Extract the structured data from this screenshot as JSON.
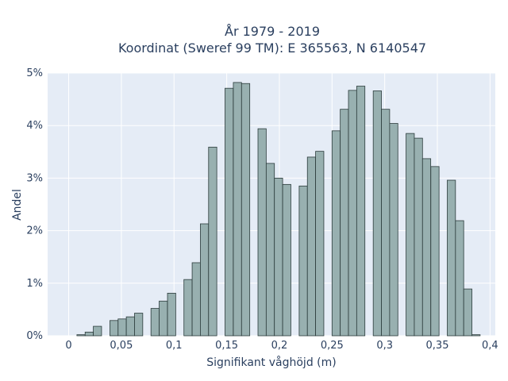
{
  "chart_data": {
    "type": "bar",
    "title_line1": "År 1979 - 2019",
    "title_line2": "Koordinat (Sweref 99 TM): E 365563, N 6140547",
    "xlabel": "Signifikant våghöjd (m)",
    "ylabel": "Andel",
    "xlim": [
      -0.02,
      0.405
    ],
    "ylim": [
      0,
      0.05
    ],
    "grid": true,
    "x_ticks": [
      {
        "v": 0,
        "label": "0"
      },
      {
        "v": 0.05,
        "label": "0,05"
      },
      {
        "v": 0.1,
        "label": "0,1"
      },
      {
        "v": 0.15,
        "label": "0,15"
      },
      {
        "v": 0.2,
        "label": "0,2"
      },
      {
        "v": 0.25,
        "label": "0,25"
      },
      {
        "v": 0.3,
        "label": "0,3"
      },
      {
        "v": 0.35,
        "label": "0,35"
      },
      {
        "v": 0.4,
        "label": "0,4"
      }
    ],
    "y_ticks": [
      {
        "v": 0,
        "label": "0%"
      },
      {
        "v": 0.01,
        "label": "1%"
      },
      {
        "v": 0.02,
        "label": "2%"
      },
      {
        "v": 0.03,
        "label": "3%"
      },
      {
        "v": 0.04,
        "label": "4%"
      },
      {
        "v": 0.05,
        "label": "5%"
      }
    ],
    "bin_width": 0.0078,
    "bar_color": "#98b0b0",
    "bar_edge_color": "#2b3b3b",
    "x": [
      0.0117,
      0.0195,
      0.0273,
      0.043,
      0.0508,
      0.0586,
      0.0664,
      0.082,
      0.0898,
      0.0977,
      0.1133,
      0.1211,
      0.1289,
      0.1367,
      0.1523,
      0.1602,
      0.168,
      0.1836,
      0.1914,
      0.1992,
      0.207,
      0.2227,
      0.2305,
      0.2383,
      0.2539,
      0.2617,
      0.2695,
      0.2773,
      0.293,
      0.3008,
      0.3086,
      0.3242,
      0.332,
      0.3398,
      0.3477,
      0.3633,
      0.3711,
      0.3789,
      0.3867
    ],
    "values": [
      0.0002,
      0.0007,
      0.0018,
      0.0029,
      0.0032,
      0.0036,
      0.0043,
      0.0052,
      0.0066,
      0.0081,
      0.0107,
      0.0139,
      0.0213,
      0.0359,
      0.0471,
      0.0482,
      0.048,
      0.0394,
      0.0328,
      0.03,
      0.0288,
      0.0285,
      0.034,
      0.0351,
      0.039,
      0.0431,
      0.0467,
      0.0475,
      0.0466,
      0.0431,
      0.0404,
      0.0385,
      0.0376,
      0.0337,
      0.0322,
      0.0296,
      0.0219,
      0.0089,
      0.0002
    ]
  }
}
